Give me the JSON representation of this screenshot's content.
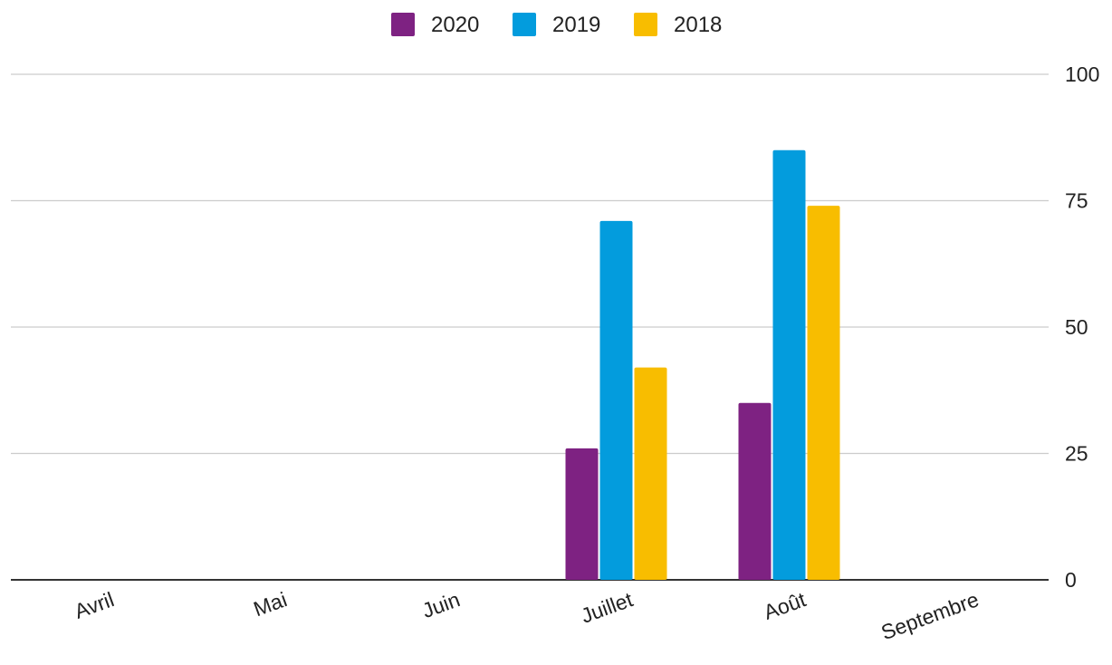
{
  "chart_data": {
    "type": "bar",
    "title": "",
    "xlabel": "",
    "ylabel": "",
    "categories": [
      "Avril",
      "Mai",
      "Juin",
      "Juillet",
      "Août",
      "Septembre"
    ],
    "series": [
      {
        "name": "2020",
        "color": "#7e2282",
        "values": [
          0,
          0,
          0,
          26,
          35,
          0
        ]
      },
      {
        "name": "2019",
        "color": "#039cdd",
        "values": [
          0,
          0,
          0,
          71,
          85,
          0
        ]
      },
      {
        "name": "2018",
        "color": "#f8bd00",
        "values": [
          0,
          0,
          0,
          42,
          74,
          0
        ]
      }
    ],
    "ylim": [
      0,
      100
    ],
    "yticks": [
      "0",
      "25",
      "50",
      "75",
      "100"
    ],
    "y_axis_side": "right",
    "grid": true,
    "legend_position": "top-center",
    "category_label_rotation": "angled"
  }
}
